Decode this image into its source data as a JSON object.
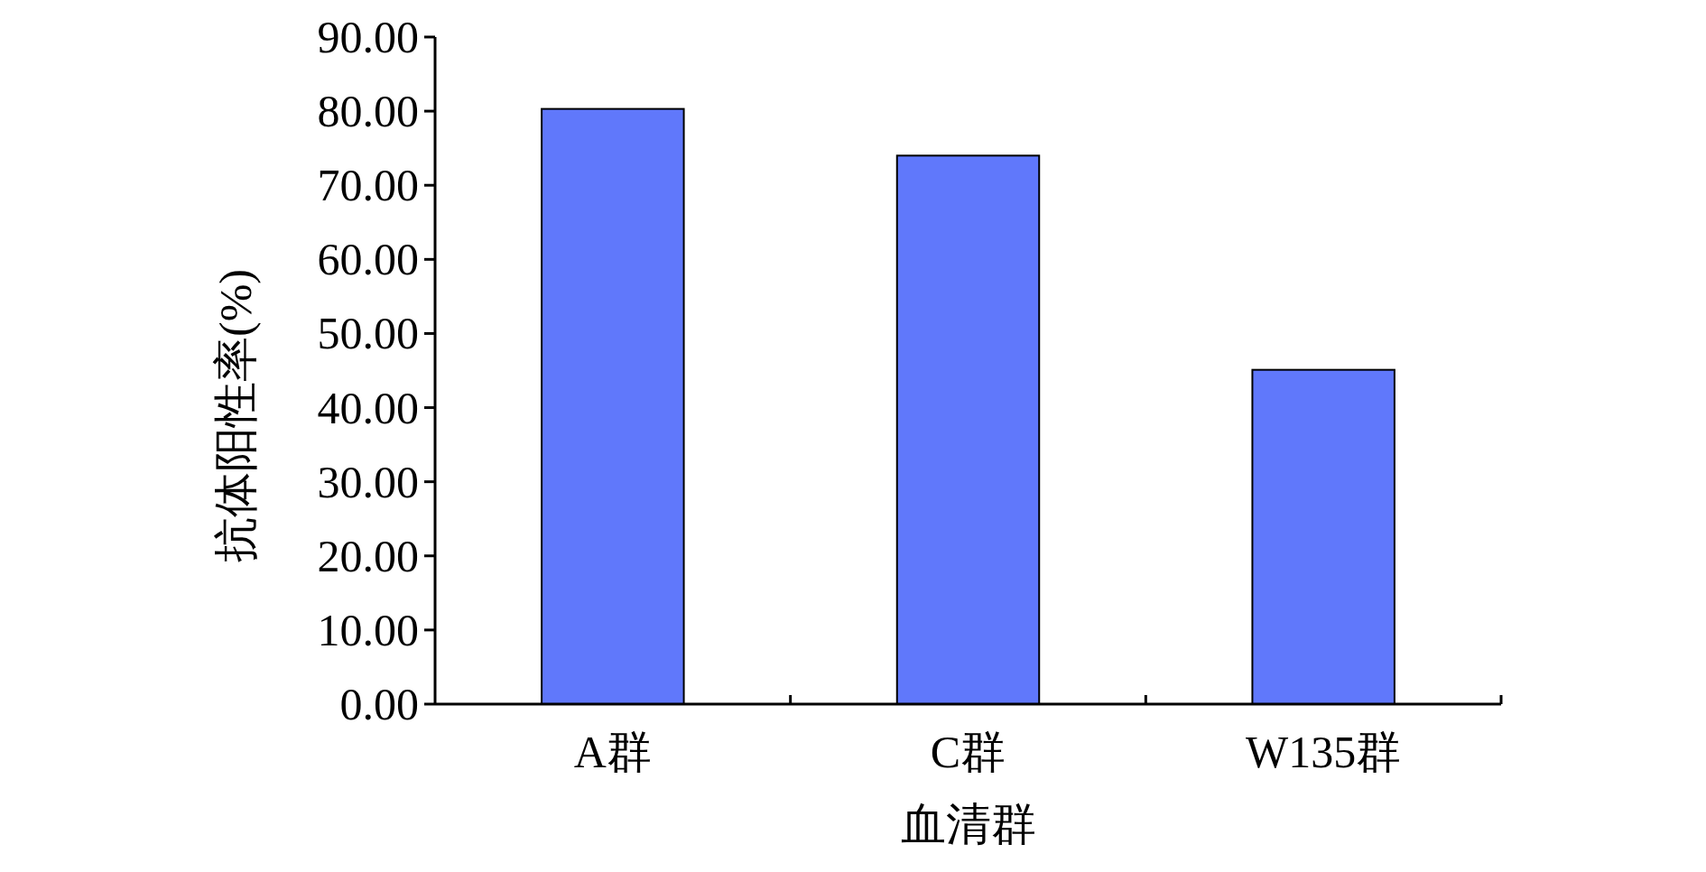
{
  "chart_data": {
    "type": "bar",
    "xlabel": "血清群",
    "ylabel": "抗体阳性率(%)",
    "categories": [
      "A群",
      "C群",
      "W135群"
    ],
    "values": [
      80.3,
      74.0,
      45.1
    ],
    "color": "#6078fb",
    "ylim": [
      0,
      90
    ],
    "yticks": [
      {
        "value": 0,
        "label": "0.00"
      },
      {
        "value": 10,
        "label": "10.00"
      },
      {
        "value": 20,
        "label": "20.00"
      },
      {
        "value": 30,
        "label": "30.00"
      },
      {
        "value": 40,
        "label": "40.00"
      },
      {
        "value": 50,
        "label": "50.00"
      },
      {
        "value": 60,
        "label": "60.00"
      },
      {
        "value": 70,
        "label": "70.00"
      },
      {
        "value": 80,
        "label": "80.00"
      },
      {
        "value": 90,
        "label": "90.00"
      }
    ]
  }
}
